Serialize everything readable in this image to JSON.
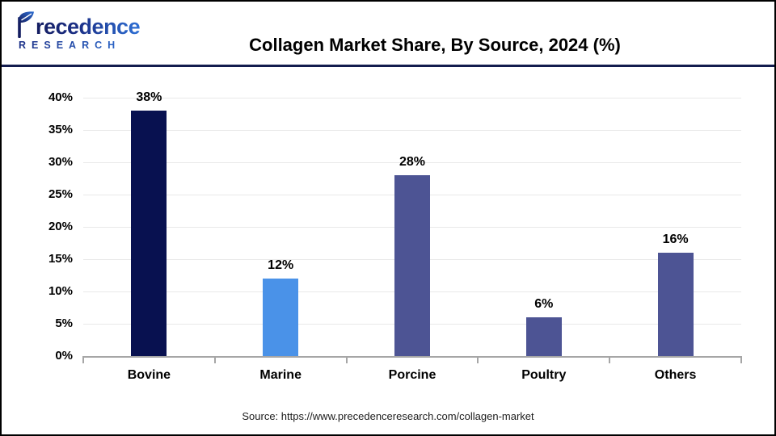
{
  "header": {
    "logo": {
      "name": "Precedence",
      "name_rest": "recedence",
      "line2": "RESEARCH"
    },
    "title": "Collagen Market Share, By Source, 2024 (%)"
  },
  "chart_data": {
    "type": "bar",
    "title": "Collagen Market Share, By Source, 2024 (%)",
    "categories": [
      "Bovine",
      "Marine",
      "Porcine",
      "Poultry",
      "Others"
    ],
    "values": [
      38,
      12,
      28,
      6,
      16
    ],
    "value_labels": [
      "38%",
      "12%",
      "28%",
      "6%",
      "16%"
    ],
    "bar_colors": [
      "#081150",
      "#4a92e8",
      "#4d5494",
      "#4d5494",
      "#4d5494"
    ],
    "y_ticks": [
      "40%",
      "35%",
      "30%",
      "25%",
      "20%",
      "15%",
      "10%",
      "5%",
      "0%"
    ],
    "ylim": [
      0,
      40
    ],
    "grid": "horizontal-light",
    "legend": "none",
    "xlabel": "",
    "ylabel": ""
  },
  "footer": {
    "source": "Source: https://www.precedenceresearch.com/collagen-market"
  },
  "colors": {
    "divider": "#131c4e",
    "gridline": "#e9e9e9",
    "axis_line": "#a6a6a6",
    "logo_navy": "#141d60",
    "logo_blue": "#2e6fd4"
  }
}
